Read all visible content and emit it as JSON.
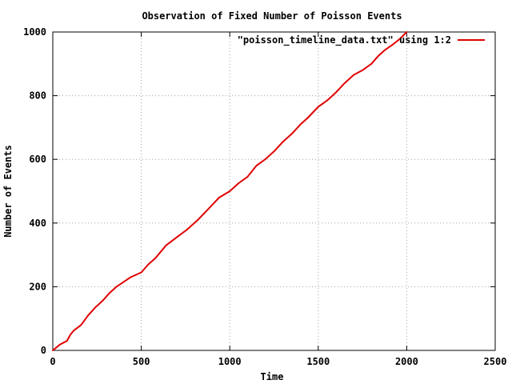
{
  "chart_data": {
    "type": "line",
    "title": "Observation of Fixed Number of Poisson Events",
    "xlabel": "Time",
    "ylabel": "Number of Events",
    "xlim": [
      0,
      2500
    ],
    "ylim": [
      0,
      1000
    ],
    "xticks": [
      0,
      500,
      1000,
      1500,
      2000,
      2500
    ],
    "yticks": [
      0,
      200,
      400,
      600,
      800,
      1000
    ],
    "grid": true,
    "legend": "top-right",
    "series": [
      {
        "name": "\"poisson_timeline_data.txt\" using 1:2",
        "color": "#e00000",
        "x": [
          0,
          40,
          80,
          100,
          120,
          160,
          200,
          240,
          280,
          320,
          360,
          400,
          440,
          480,
          500,
          540,
          580,
          640,
          700,
          760,
          820,
          880,
          940,
          1000,
          1050,
          1100,
          1150,
          1200,
          1250,
          1300,
          1350,
          1400,
          1440,
          1500,
          1550,
          1600,
          1650,
          1700,
          1750,
          1800,
          1840,
          1880,
          1920,
          1960,
          2000
        ],
        "y": [
          0,
          18,
          30,
          50,
          63,
          80,
          110,
          135,
          155,
          180,
          200,
          215,
          230,
          240,
          245,
          270,
          290,
          330,
          355,
          380,
          410,
          445,
          480,
          500,
          525,
          545,
          580,
          600,
          625,
          655,
          680,
          710,
          730,
          765,
          785,
          810,
          840,
          865,
          880,
          900,
          925,
          945,
          960,
          978,
          1000
        ]
      }
    ]
  }
}
